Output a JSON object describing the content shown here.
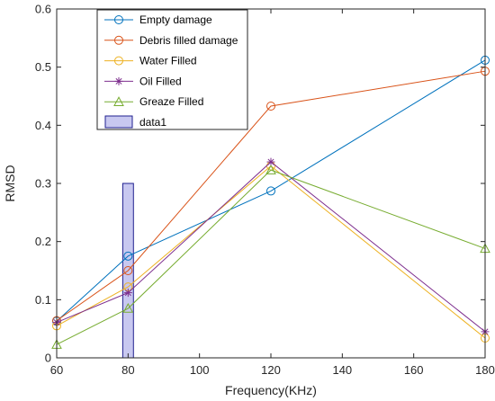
{
  "chart_data": {
    "type": "line",
    "xlabel": "Frequency(KHz)",
    "ylabel": "RMSD",
    "xlim": [
      60,
      180
    ],
    "ylim": [
      0,
      0.6
    ],
    "xticks": [
      60,
      80,
      100,
      120,
      140,
      160,
      180
    ],
    "yticks": [
      0,
      0.1,
      0.2,
      0.3,
      0.4,
      0.5,
      0.6
    ],
    "xtick_labels": [
      "60",
      "80",
      "100",
      "120",
      "140",
      "160",
      "180"
    ],
    "ytick_labels": [
      "0",
      "0.1",
      "0.2",
      "0.3",
      "0.4",
      "0.5",
      "0.6"
    ],
    "x": [
      60,
      80,
      120,
      180
    ],
    "grid": false,
    "legend_position": "top-left",
    "series": [
      {
        "name": "Empty damage",
        "values": [
          0.063,
          0.175,
          0.287,
          0.512
        ],
        "color": "#0072BD",
        "marker": "circle"
      },
      {
        "name": "Debris filled damage",
        "values": [
          0.064,
          0.15,
          0.433,
          0.493
        ],
        "color": "#D95319",
        "marker": "circle"
      },
      {
        "name": "Water Filled",
        "values": [
          0.055,
          0.122,
          0.33,
          0.034
        ],
        "color": "#EDB120",
        "marker": "circle"
      },
      {
        "name": "Oil Filled",
        "values": [
          0.061,
          0.112,
          0.337,
          0.045
        ],
        "color": "#7E2F8E",
        "marker": "star"
      },
      {
        "name": "Greaze Filled",
        "values": [
          0.023,
          0.085,
          0.323,
          0.188
        ],
        "color": "#77AC30",
        "marker": "triangle"
      }
    ],
    "bars": [
      {
        "name": "data1",
        "x": 80,
        "x_range": [
          78.5,
          81.5
        ],
        "value": 0.3,
        "fill": "#C8C8F0",
        "stroke": "#1F1F8F"
      }
    ]
  }
}
